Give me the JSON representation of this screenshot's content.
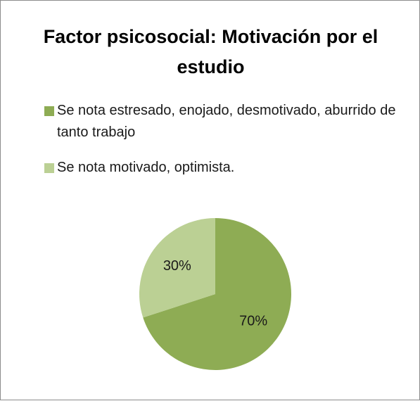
{
  "chart_data": {
    "type": "pie",
    "title": "Factor psicosocial: Motivación por el estudio",
    "categories": [
      "Se nota estresado, enojado, desmotivado, aburrido de tanto trabajo",
      "Se nota motivado, optimista."
    ],
    "values": [
      70,
      30
    ],
    "value_labels": [
      "70%",
      "30%"
    ],
    "colors": [
      "#8eac54",
      "#bbd094"
    ],
    "legend": "top"
  }
}
